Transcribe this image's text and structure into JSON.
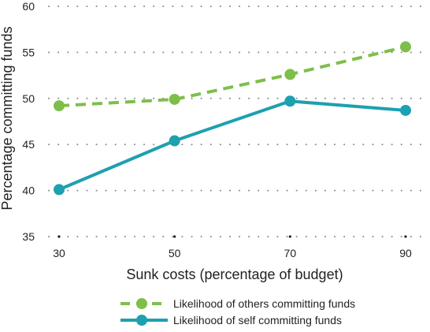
{
  "chart_data": {
    "type": "line",
    "title": "",
    "xlabel": "Sunk costs (percentage of budget)",
    "ylabel": "Percentage committing funds",
    "x": [
      30,
      50,
      70,
      90
    ],
    "x_tick_labels": [
      "30",
      "50",
      "70",
      "90"
    ],
    "ylim": [
      35,
      60
    ],
    "y_ticks": [
      35,
      40,
      45,
      50,
      55,
      60
    ],
    "y_tick_labels": [
      "35",
      "40",
      "45",
      "50",
      "55",
      "60"
    ],
    "grid": "horizontal dotted",
    "legend_position": "bottom-center",
    "series": [
      {
        "name": "Likelihood of others committing funds",
        "values": [
          49.2,
          49.9,
          52.6,
          55.6
        ],
        "color": "#7dbf4a",
        "line_style": "dashed",
        "marker": "circle"
      },
      {
        "name": "Likelihood of self committing funds",
        "values": [
          40.1,
          45.4,
          49.7,
          48.7
        ],
        "color": "#1da0b0",
        "line_style": "solid",
        "marker": "circle"
      }
    ]
  }
}
